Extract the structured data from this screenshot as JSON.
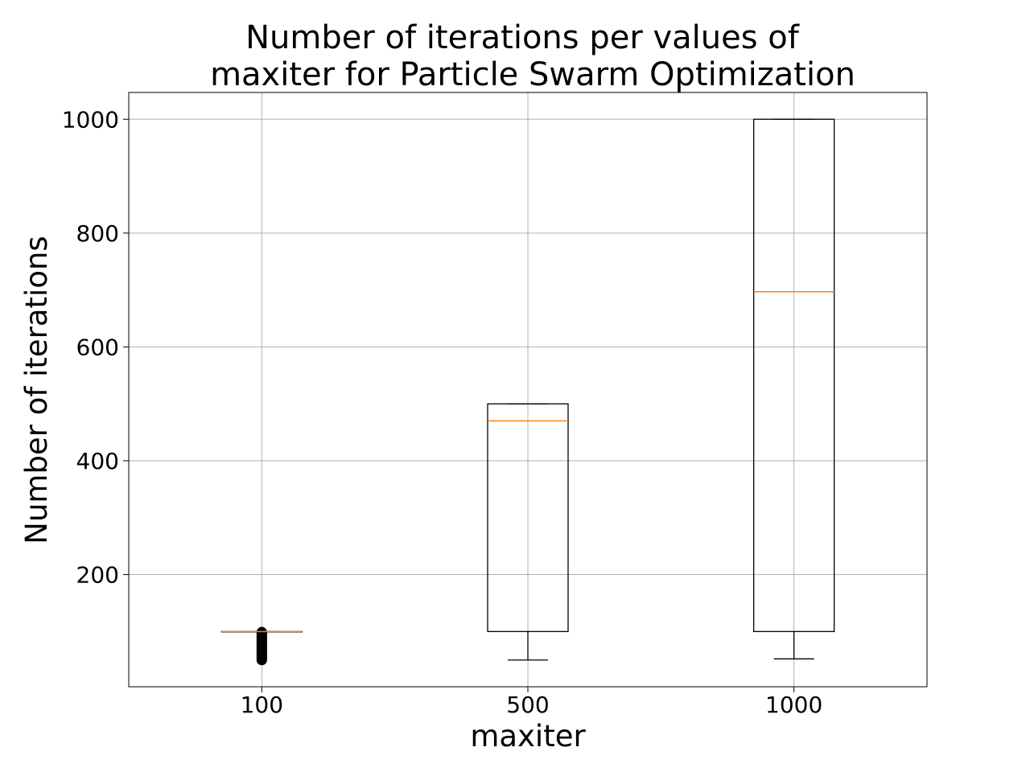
{
  "chart_data": {
    "type": "box",
    "title_lines": [
      "Number of iterations per values of",
      "maxiter for Particle Swarm Optimization"
    ],
    "xlabel": "maxiter",
    "ylabel": "Number of iterations",
    "categories": [
      "100",
      "500",
      "1000"
    ],
    "ylim": [
      3,
      1047
    ],
    "y_ticks": [
      200,
      400,
      600,
      800,
      1000
    ],
    "grid": true,
    "boxes": [
      {
        "category": "100",
        "whisker_low": 100,
        "q1": 100,
        "median": 100,
        "q3": 100,
        "whisker_high": 100,
        "outliers": [
          50,
          52,
          54,
          56,
          58,
          60,
          62,
          64,
          66,
          68,
          70,
          72,
          74,
          76,
          78,
          80,
          82,
          84,
          86,
          88,
          90,
          92,
          94,
          96,
          98,
          99
        ]
      },
      {
        "category": "500",
        "whisker_low": 50,
        "q1": 100,
        "median": 470,
        "q3": 500,
        "whisker_high": 500,
        "outliers": []
      },
      {
        "category": "1000",
        "whisker_low": 52,
        "q1": 100,
        "median": 697,
        "q3": 1000,
        "whisker_high": 1000,
        "outliers": []
      }
    ],
    "colors": {
      "box": "#000000",
      "median": "#ff7f0e",
      "grid": "#b0b0b0",
      "outlier": "#000000"
    }
  }
}
